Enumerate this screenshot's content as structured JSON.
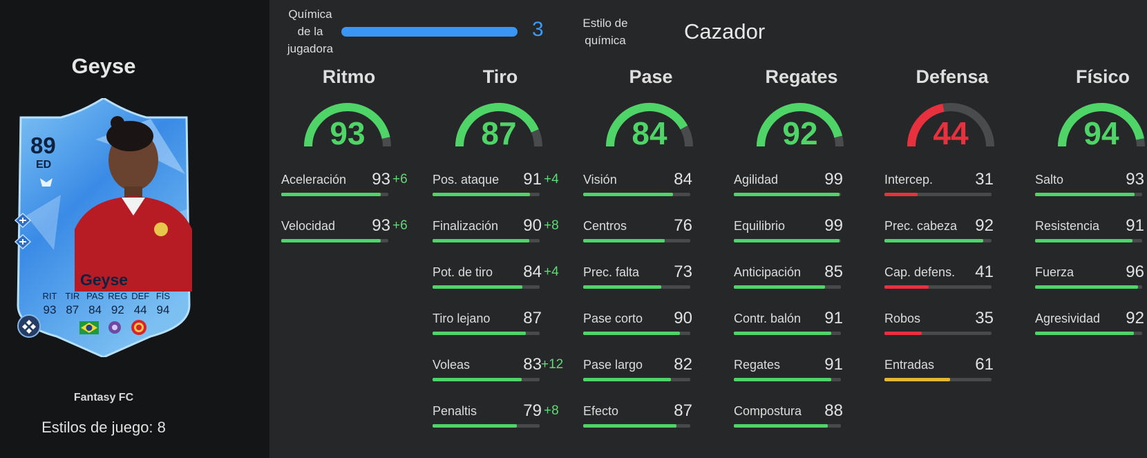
{
  "player": {
    "name": "Geyse",
    "card_name": "Geyse",
    "rating": "89",
    "position": "ED",
    "card_stats": [
      {
        "label": "RIT",
        "value": "93"
      },
      {
        "label": "TIR",
        "value": "87"
      },
      {
        "label": "PAS",
        "value": "84"
      },
      {
        "label": "REG",
        "value": "92"
      },
      {
        "label": "DEF",
        "value": "44"
      },
      {
        "label": "FÍS",
        "value": "94"
      }
    ],
    "version": "Fantasy FC",
    "playstyles_text": "Estilos de juego: 8"
  },
  "chemistry": {
    "label_lines": [
      "Química",
      "de la",
      "jugadora"
    ],
    "value": "3",
    "fill": 1.0,
    "style_label_lines": [
      "Estilo de",
      "química"
    ],
    "style_value": "Cazador"
  },
  "colors": {
    "good": "#4fd468",
    "mid": "#e6b737",
    "low": "#e8303f",
    "boost": "#5fda75",
    "chem_blue": "#3996f4"
  },
  "categories": [
    {
      "title": "Ritmo",
      "value": 93,
      "attributes": [
        {
          "name": "Aceleración",
          "value": 93,
          "boost": "+6"
        },
        {
          "name": "Velocidad",
          "value": 93,
          "boost": "+6"
        }
      ]
    },
    {
      "title": "Tiro",
      "value": 87,
      "attributes": [
        {
          "name": "Pos. ataque",
          "value": 91,
          "boost": "+4"
        },
        {
          "name": "Finalización",
          "value": 90,
          "boost": "+8"
        },
        {
          "name": "Pot. de tiro",
          "value": 84,
          "boost": "+4"
        },
        {
          "name": "Tiro lejano",
          "value": 87,
          "boost": ""
        },
        {
          "name": "Voleas",
          "value": 83,
          "boost": "+12"
        },
        {
          "name": "Penaltis",
          "value": 79,
          "boost": "+8"
        }
      ]
    },
    {
      "title": "Pase",
      "value": 84,
      "attributes": [
        {
          "name": "Visión",
          "value": 84,
          "boost": ""
        },
        {
          "name": "Centros",
          "value": 76,
          "boost": ""
        },
        {
          "name": "Prec. falta",
          "value": 73,
          "boost": ""
        },
        {
          "name": "Pase corto",
          "value": 90,
          "boost": ""
        },
        {
          "name": "Pase largo",
          "value": 82,
          "boost": ""
        },
        {
          "name": "Efecto",
          "value": 87,
          "boost": ""
        }
      ]
    },
    {
      "title": "Regates",
      "value": 92,
      "attributes": [
        {
          "name": "Agilidad",
          "value": 99,
          "boost": ""
        },
        {
          "name": "Equilibrio",
          "value": 99,
          "boost": ""
        },
        {
          "name": "Anticipación",
          "value": 85,
          "boost": ""
        },
        {
          "name": "Contr. balón",
          "value": 91,
          "boost": ""
        },
        {
          "name": "Regates",
          "value": 91,
          "boost": ""
        },
        {
          "name": "Compostura",
          "value": 88,
          "boost": ""
        }
      ]
    },
    {
      "title": "Defensa",
      "value": 44,
      "attributes": [
        {
          "name": "Intercep.",
          "value": 31,
          "boost": ""
        },
        {
          "name": "Prec. cabeza",
          "value": 92,
          "boost": ""
        },
        {
          "name": "Cap. defens.",
          "value": 41,
          "boost": ""
        },
        {
          "name": "Robos",
          "value": 35,
          "boost": ""
        },
        {
          "name": "Entradas",
          "value": 61,
          "boost": ""
        }
      ]
    },
    {
      "title": "Físico",
      "value": 94,
      "attributes": [
        {
          "name": "Salto",
          "value": 93,
          "boost": ""
        },
        {
          "name": "Resistencia",
          "value": 91,
          "boost": ""
        },
        {
          "name": "Fuerza",
          "value": 96,
          "boost": ""
        },
        {
          "name": "Agresividad",
          "value": 92,
          "boost": ""
        }
      ]
    }
  ]
}
